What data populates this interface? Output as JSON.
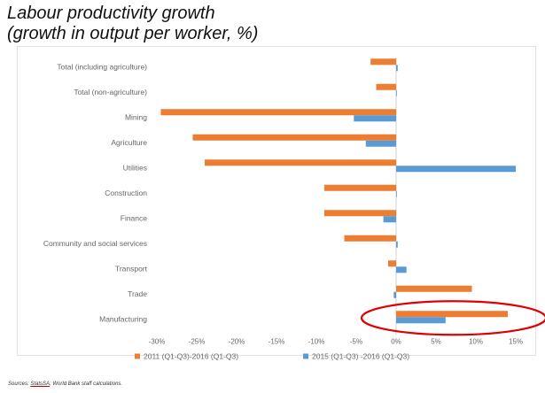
{
  "title": {
    "line1": "Labour productivity growth",
    "line2": "(growth in output per worker, %)"
  },
  "source": {
    "prefix": "Sources:",
    "name": "StatsSA",
    "rest": "; World Bank staff calculations."
  },
  "colors": {
    "series1": "#ED7D31",
    "series2": "#5B9BD5",
    "highlight": "#E00000",
    "axis_text": "#666666"
  },
  "chart_data": {
    "type": "bar",
    "orientation": "horizontal",
    "categories": [
      "Total (including agriculture)",
      "Total (non-agriculture)",
      "Mining",
      "Agriculture",
      "Utilities",
      "Construction",
      "Finance",
      "Community and social services",
      "Transport",
      "Trade",
      "Manufacturing"
    ],
    "series": [
      {
        "name": "2011 (Q1-Q3)-2016 (Q1-Q3)",
        "values": [
          -3.2,
          -2.5,
          -29.5,
          -25.5,
          -24.0,
          -9.0,
          -9.0,
          -6.5,
          -1.0,
          9.5,
          14.0
        ]
      },
      {
        "name": "2015 (Q1-Q3) -2016 (Q1-Q3)",
        "values": [
          0.2,
          0.0,
          -5.3,
          -3.8,
          15.0,
          0.0,
          -1.6,
          0.2,
          1.3,
          -0.3,
          6.2
        ]
      }
    ],
    "xlim": [
      -30,
      15
    ],
    "xticks": [
      "-30%",
      "-25%",
      "-20%",
      "-15%",
      "-10%",
      "-5%",
      "0%",
      "5%",
      "10%",
      "15%"
    ],
    "xtick_values": [
      -30,
      -25,
      -20,
      -15,
      -10,
      -5,
      0,
      5,
      10,
      15
    ],
    "grid": false,
    "legend_position": "bottom",
    "annotation": "red ellipse highlighting Manufacturing"
  }
}
